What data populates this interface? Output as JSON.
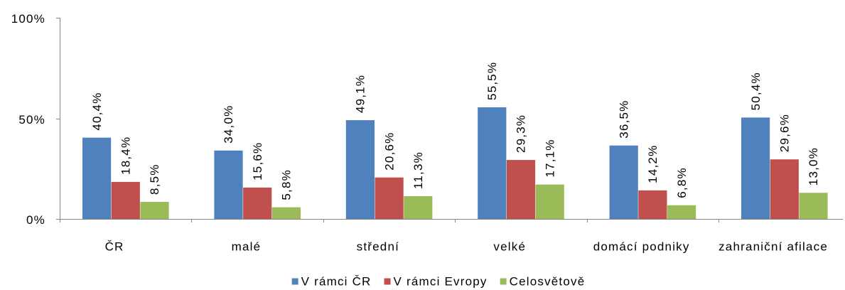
{
  "chart_data": {
    "type": "bar",
    "categories": [
      "ČR",
      "malé",
      "střední",
      "velké",
      "domácí podniky",
      "zahraniční afilace"
    ],
    "series": [
      {
        "name": "V rámci ČR",
        "color": "#4F81BD",
        "values": [
          40.4,
          34.0,
          49.1,
          55.5,
          36.5,
          50.4
        ],
        "labels": [
          "40,4%",
          "34,0%",
          "49,1%",
          "55,5%",
          "36,5%",
          "50,4%"
        ]
      },
      {
        "name": "V rámci Evropy",
        "color": "#C0504D",
        "values": [
          18.4,
          15.6,
          20.6,
          29.3,
          14.2,
          29.6
        ],
        "labels": [
          "18,4%",
          "15,6%",
          "20,6%",
          "29,3%",
          "14,2%",
          "29,6%"
        ]
      },
      {
        "name": "Celosvětově",
        "color": "#9BBB59",
        "values": [
          8.5,
          5.8,
          11.3,
          17.1,
          6.8,
          13.0
        ],
        "labels": [
          "8,5%",
          "5,8%",
          "11,3%",
          "17,1%",
          "6,8%",
          "13,0%"
        ]
      }
    ],
    "ylim": [
      0,
      100
    ],
    "yticks": [
      0,
      50,
      100
    ],
    "ytick_labels": [
      "0%",
      "50%",
      "100%"
    ],
    "grid": false,
    "legend": "bottom"
  },
  "colors": {
    "axis": "#868686",
    "background": "#FFFFFF"
  }
}
